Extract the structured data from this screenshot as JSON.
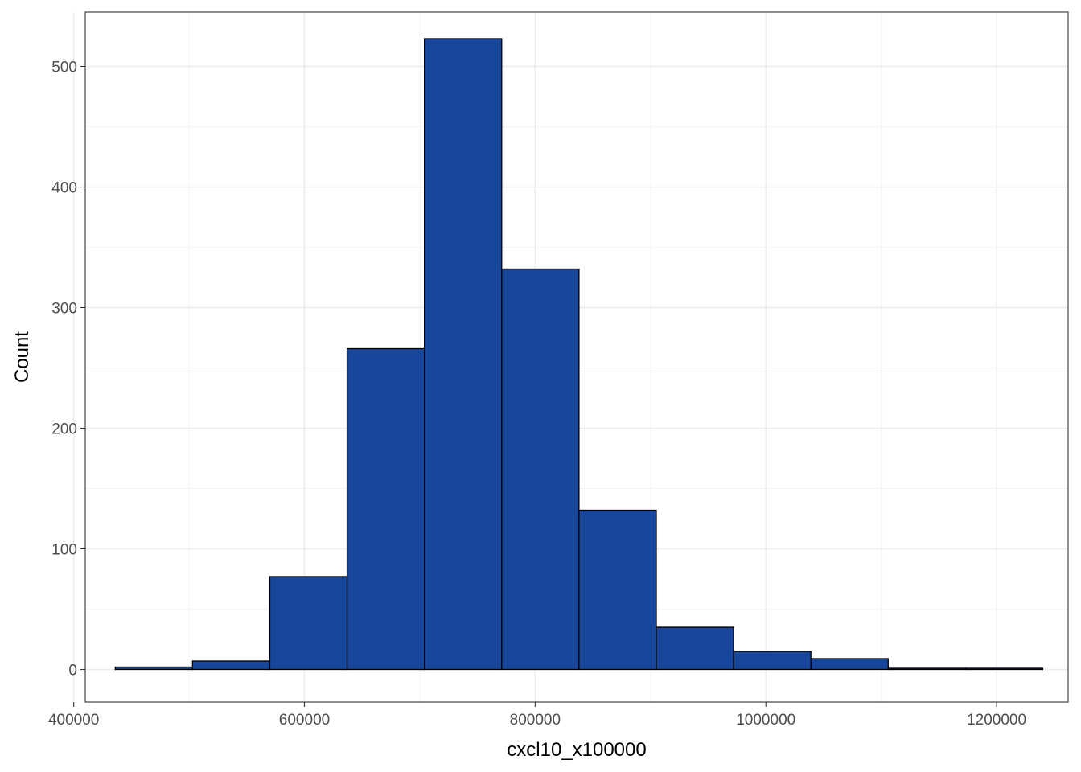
{
  "chart_data": {
    "type": "bar",
    "subtype": "histogram",
    "title": "",
    "xlabel": "cxcl10_x100000",
    "ylabel": "Count",
    "xlim": [
      410000,
      1262000
    ],
    "ylim": [
      -27,
      545
    ],
    "grid": true,
    "legend": "none",
    "bins": [
      {
        "x0": 436000,
        "x1": 503000,
        "count": 2
      },
      {
        "x0": 503000,
        "x1": 570000,
        "count": 7
      },
      {
        "x0": 570000,
        "x1": 637000,
        "count": 77
      },
      {
        "x0": 637000,
        "x1": 704000,
        "count": 266
      },
      {
        "x0": 704000,
        "x1": 771000,
        "count": 523
      },
      {
        "x0": 771000,
        "x1": 838000,
        "count": 332
      },
      {
        "x0": 838000,
        "x1": 905000,
        "count": 132
      },
      {
        "x0": 905000,
        "x1": 972000,
        "count": 35
      },
      {
        "x0": 972000,
        "x1": 1039000,
        "count": 15
      },
      {
        "x0": 1039000,
        "x1": 1106000,
        "count": 9
      },
      {
        "x0": 1106000,
        "x1": 1173000,
        "count": 1
      },
      {
        "x0": 1173000,
        "x1": 1240000,
        "count": 1
      }
    ],
    "x_ticks": [
      {
        "value": 400000,
        "label": "400000"
      },
      {
        "value": 600000,
        "label": "600000"
      },
      {
        "value": 800000,
        "label": "800000"
      },
      {
        "value": 1000000,
        "label": "1000000"
      },
      {
        "value": 1200000,
        "label": "1200000"
      }
    ],
    "y_ticks": [
      {
        "value": 0,
        "label": "0"
      },
      {
        "value": 100,
        "label": "100"
      },
      {
        "value": 200,
        "label": "200"
      },
      {
        "value": 300,
        "label": "300"
      },
      {
        "value": 400,
        "label": "400"
      },
      {
        "value": 500,
        "label": "500"
      }
    ],
    "colors": {
      "bar_fill": "#18469b",
      "bar_stroke": "#000000",
      "grid_major": "#ebebeb",
      "grid_minor": "#f5f5f5",
      "panel_border": "#333333",
      "tick_text": "#4d4d4d"
    }
  }
}
